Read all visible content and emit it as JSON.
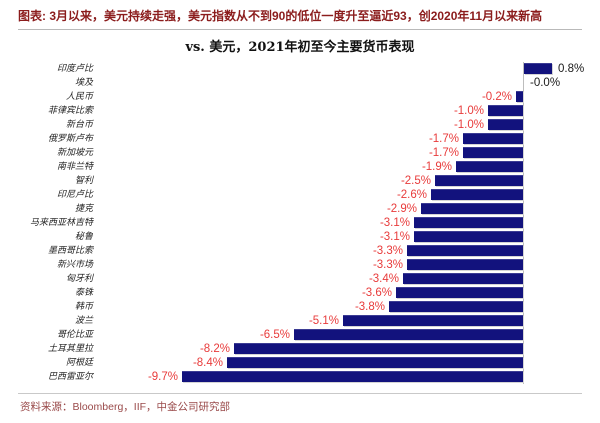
{
  "header": {
    "title": "图表: 3月以来，美元持续走强，美元指数从不到90的低位一度升至逼近93，创2020年11月以来新高"
  },
  "chart_data": {
    "type": "bar",
    "orientation": "horizontal",
    "title": "vs. 美元，2021年初至今主要货币表现",
    "categories": [
      "印度卢比",
      "埃及",
      "人民币",
      "菲律宾比索",
      "新台币",
      "俄罗斯卢布",
      "新加坡元",
      "南非兰特",
      "智利",
      "印尼卢比",
      "捷克",
      "马来西亚林吉特",
      "秘鲁",
      "墨西哥比索",
      "新兴市场",
      "匈牙利",
      "泰铢",
      "韩币",
      "波兰",
      "哥伦比亚",
      "土耳其里拉",
      "阿根廷",
      "巴西雷亚尔"
    ],
    "values": [
      0.8,
      -0.0,
      -0.2,
      -1.0,
      -1.0,
      -1.7,
      -1.7,
      -1.9,
      -2.5,
      -2.6,
      -2.9,
      -3.1,
      -3.1,
      -3.3,
      -3.3,
      -3.4,
      -3.6,
      -3.8,
      -5.1,
      -6.5,
      -8.2,
      -8.4,
      -9.7
    ],
    "value_labels": [
      "0.8%",
      "-0.0%",
      "-0.2%",
      "-1.0%",
      "-1.0%",
      "-1.7%",
      "-1.7%",
      "-1.9%",
      "-2.5%",
      "-2.6%",
      "-2.9%",
      "-3.1%",
      "-3.1%",
      "-3.3%",
      "-3.3%",
      "-3.4%",
      "-3.6%",
      "-3.8%",
      "-5.1%",
      "-6.5%",
      "-8.2%",
      "-8.4%",
      "-9.7%"
    ],
    "xlim": [
      -10,
      1
    ],
    "bar_color": "#12127d",
    "negative_label_color": "#e83b3b",
    "positive_label_color": "#1a1a1a",
    "unit": "%",
    "legend_position": "none",
    "grid": false
  },
  "footer": {
    "source": "资料来源：Bloomberg，IIF，中金公司研究部"
  }
}
